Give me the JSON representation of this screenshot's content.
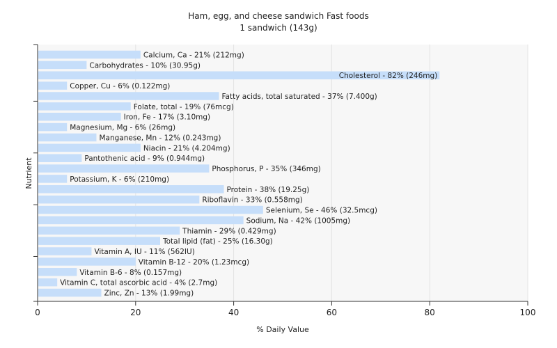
{
  "chart_data": {
    "type": "bar",
    "orientation": "horizontal",
    "title": "Ham, egg, and cheese sandwich Fast foods",
    "subtitle": "1 sandwich (143g)",
    "xlabel": "% Daily Value",
    "ylabel": "Nutrient",
    "xlim": [
      0,
      100
    ],
    "xticks": [
      0,
      20,
      40,
      60,
      80,
      100
    ],
    "grid": true,
    "legend": "none",
    "bar_color": "#c6defa",
    "plot_background": "#f7f7f7",
    "categories": [
      "Calcium, Ca",
      "Carbohydrates",
      "Cholesterol",
      "Copper, Cu",
      "Fatty acids, total saturated",
      "Folate, total",
      "Iron, Fe",
      "Magnesium, Mg",
      "Manganese, Mn",
      "Niacin",
      "Pantothenic acid",
      "Phosphorus, P",
      "Potassium, K",
      "Protein",
      "Riboflavin",
      "Selenium, Se",
      "Sodium, Na",
      "Thiamin",
      "Total lipid (fat)",
      "Vitamin A, IU",
      "Vitamin B-12",
      "Vitamin B-6",
      "Vitamin C, total ascorbic acid",
      "Zinc, Zn"
    ],
    "values": [
      21,
      10,
      82,
      6,
      37,
      19,
      17,
      6,
      12,
      21,
      9,
      35,
      6,
      38,
      33,
      46,
      42,
      29,
      25,
      11,
      20,
      8,
      4,
      13
    ],
    "labels": [
      "Calcium, Ca - 21% (212mg)",
      "Carbohydrates - 10% (30.95g)",
      "Cholesterol - 82% (246mg)",
      "Copper, Cu - 6% (0.122mg)",
      "Fatty acids, total saturated - 37% (7.400g)",
      "Folate, total - 19% (76mcg)",
      "Iron, Fe - 17% (3.10mg)",
      "Magnesium, Mg - 6% (26mg)",
      "Manganese, Mn - 12% (0.243mg)",
      "Niacin - 21% (4.204mg)",
      "Pantothenic acid - 9% (0.944mg)",
      "Phosphorus, P - 35% (346mg)",
      "Potassium, K - 6% (210mg)",
      "Protein - 38% (19.25g)",
      "Riboflavin - 33% (0.558mg)",
      "Selenium, Se - 46% (32.5mcg)",
      "Sodium, Na - 42% (1005mg)",
      "Thiamin - 29% (0.429mg)",
      "Total lipid (fat) - 25% (16.30g)",
      "Vitamin A, IU - 11% (562IU)",
      "Vitamin B-12 - 20% (1.23mcg)",
      "Vitamin B-6 - 8% (0.157mg)",
      "Vitamin C, total ascorbic acid - 4% (2.7mg)",
      "Zinc, Zn - 13% (1.99mg)"
    ]
  }
}
